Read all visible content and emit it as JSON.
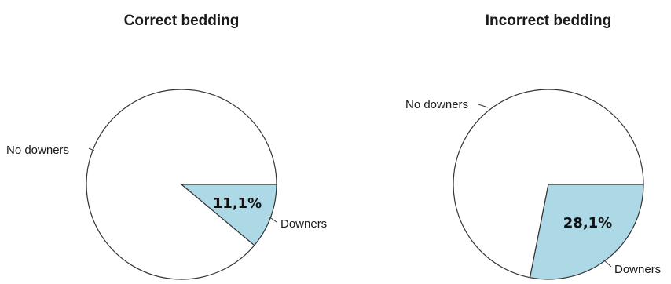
{
  "chart_data": [
    {
      "type": "pie",
      "title": "Correct bedding",
      "slices": [
        {
          "label": "No downers",
          "value": 88.9,
          "color": "#ffffff"
        },
        {
          "label": "Downers",
          "value": 11.1,
          "color": "#add8e6",
          "data_label": "11,1%"
        }
      ]
    },
    {
      "type": "pie",
      "title": "Incorrect bedding",
      "slices": [
        {
          "label": "No downers",
          "value": 71.9,
          "color": "#ffffff"
        },
        {
          "label": "Downers",
          "value": 28.1,
          "color": "#add8e6",
          "data_label": "28,1%"
        }
      ]
    }
  ],
  "colors": {
    "outline": "#333333",
    "highlight": "#add8e6"
  }
}
